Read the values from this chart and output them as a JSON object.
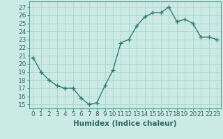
{
  "x": [
    0,
    1,
    2,
    3,
    4,
    5,
    6,
    7,
    8,
    9,
    10,
    11,
    12,
    13,
    14,
    15,
    16,
    17,
    18,
    19,
    20,
    21,
    22,
    23
  ],
  "y": [
    20.8,
    19.0,
    18.0,
    17.3,
    17.0,
    17.0,
    15.8,
    15.0,
    15.2,
    17.3,
    19.2,
    22.6,
    23.0,
    24.7,
    25.8,
    26.3,
    26.3,
    27.0,
    25.2,
    25.5,
    25.0,
    23.3,
    23.3,
    23.0
  ],
  "line_color": "#2d7d6d",
  "marker": "+",
  "marker_size": 4,
  "bg_color": "#cceae4",
  "grid_color": "#b0d8d0",
  "xlabel": "Humidex (Indice chaleur)",
  "xlabel_fontsize": 7.5,
  "ylabel_ticks": [
    15,
    16,
    17,
    18,
    19,
    20,
    21,
    22,
    23,
    24,
    25,
    26,
    27
  ],
  "ylim": [
    14.5,
    27.7
  ],
  "xlim": [
    -0.5,
    23.5
  ],
  "xticks": [
    0,
    1,
    2,
    3,
    4,
    5,
    6,
    7,
    8,
    9,
    10,
    11,
    12,
    13,
    14,
    15,
    16,
    17,
    18,
    19,
    20,
    21,
    22,
    23
  ],
  "tick_fontsize": 6.5,
  "linewidth": 1.0
}
